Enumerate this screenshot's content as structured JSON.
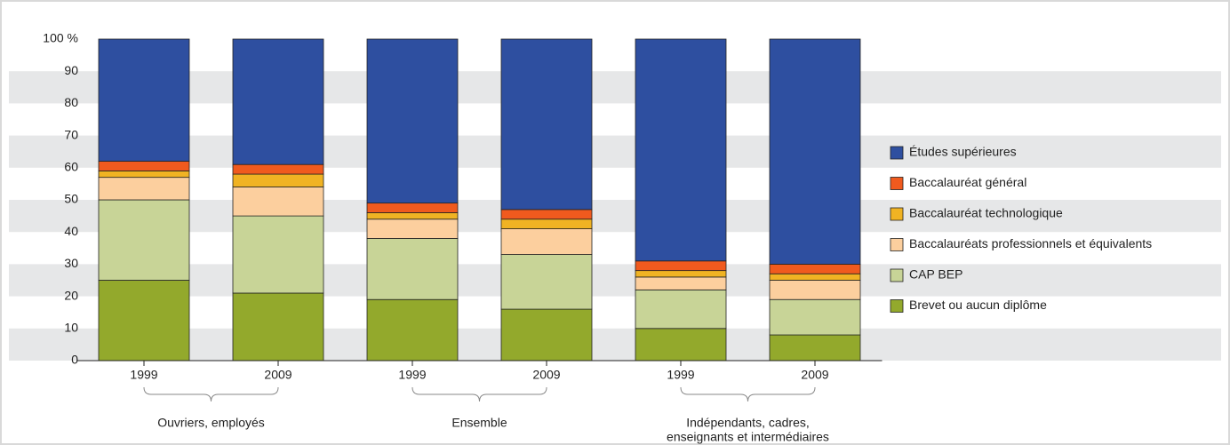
{
  "chart_data": {
    "type": "stacked_bar",
    "categories": [
      "1999",
      "2009",
      "1999",
      "2009",
      "1999",
      "2009"
    ],
    "groups": [
      {
        "label": [
          "Ouvriers, employés"
        ],
        "span": 2
      },
      {
        "label": [
          "Ensemble"
        ],
        "span": 2
      },
      {
        "label": [
          "Indépendants, cadres,",
          "enseignants et intermédiaires"
        ],
        "span": 2
      }
    ],
    "series": [
      {
        "name": "Brevet ou aucun diplôme",
        "color": "#93a92c",
        "values": [
          25,
          21,
          19,
          16,
          10,
          8
        ]
      },
      {
        "name": "CAP BEP",
        "color": "#c8d497",
        "values": [
          25,
          24,
          19,
          17,
          12,
          11
        ]
      },
      {
        "name": "Baccalauréats professionnels et équivalents",
        "color": "#fccf9e",
        "values": [
          7,
          9,
          6,
          8,
          4,
          6
        ]
      },
      {
        "name": "Baccalauréat technologique",
        "color": "#f0b323",
        "values": [
          2,
          4,
          2,
          3,
          2,
          2
        ]
      },
      {
        "name": "Baccalauréat général",
        "color": "#f05a1e",
        "values": [
          3,
          3,
          3,
          3,
          3,
          3
        ]
      },
      {
        "name": "Études supérieures",
        "color": "#2e4fa0",
        "values": [
          38,
          39,
          51,
          53,
          69,
          70
        ]
      }
    ],
    "ylim": [
      0,
      100
    ],
    "yticks": [
      0,
      10,
      20,
      30,
      40,
      50,
      60,
      70,
      80,
      90,
      {
        "value": 100,
        "label": "100 %"
      }
    ],
    "grid": "bands",
    "legend": "right"
  }
}
